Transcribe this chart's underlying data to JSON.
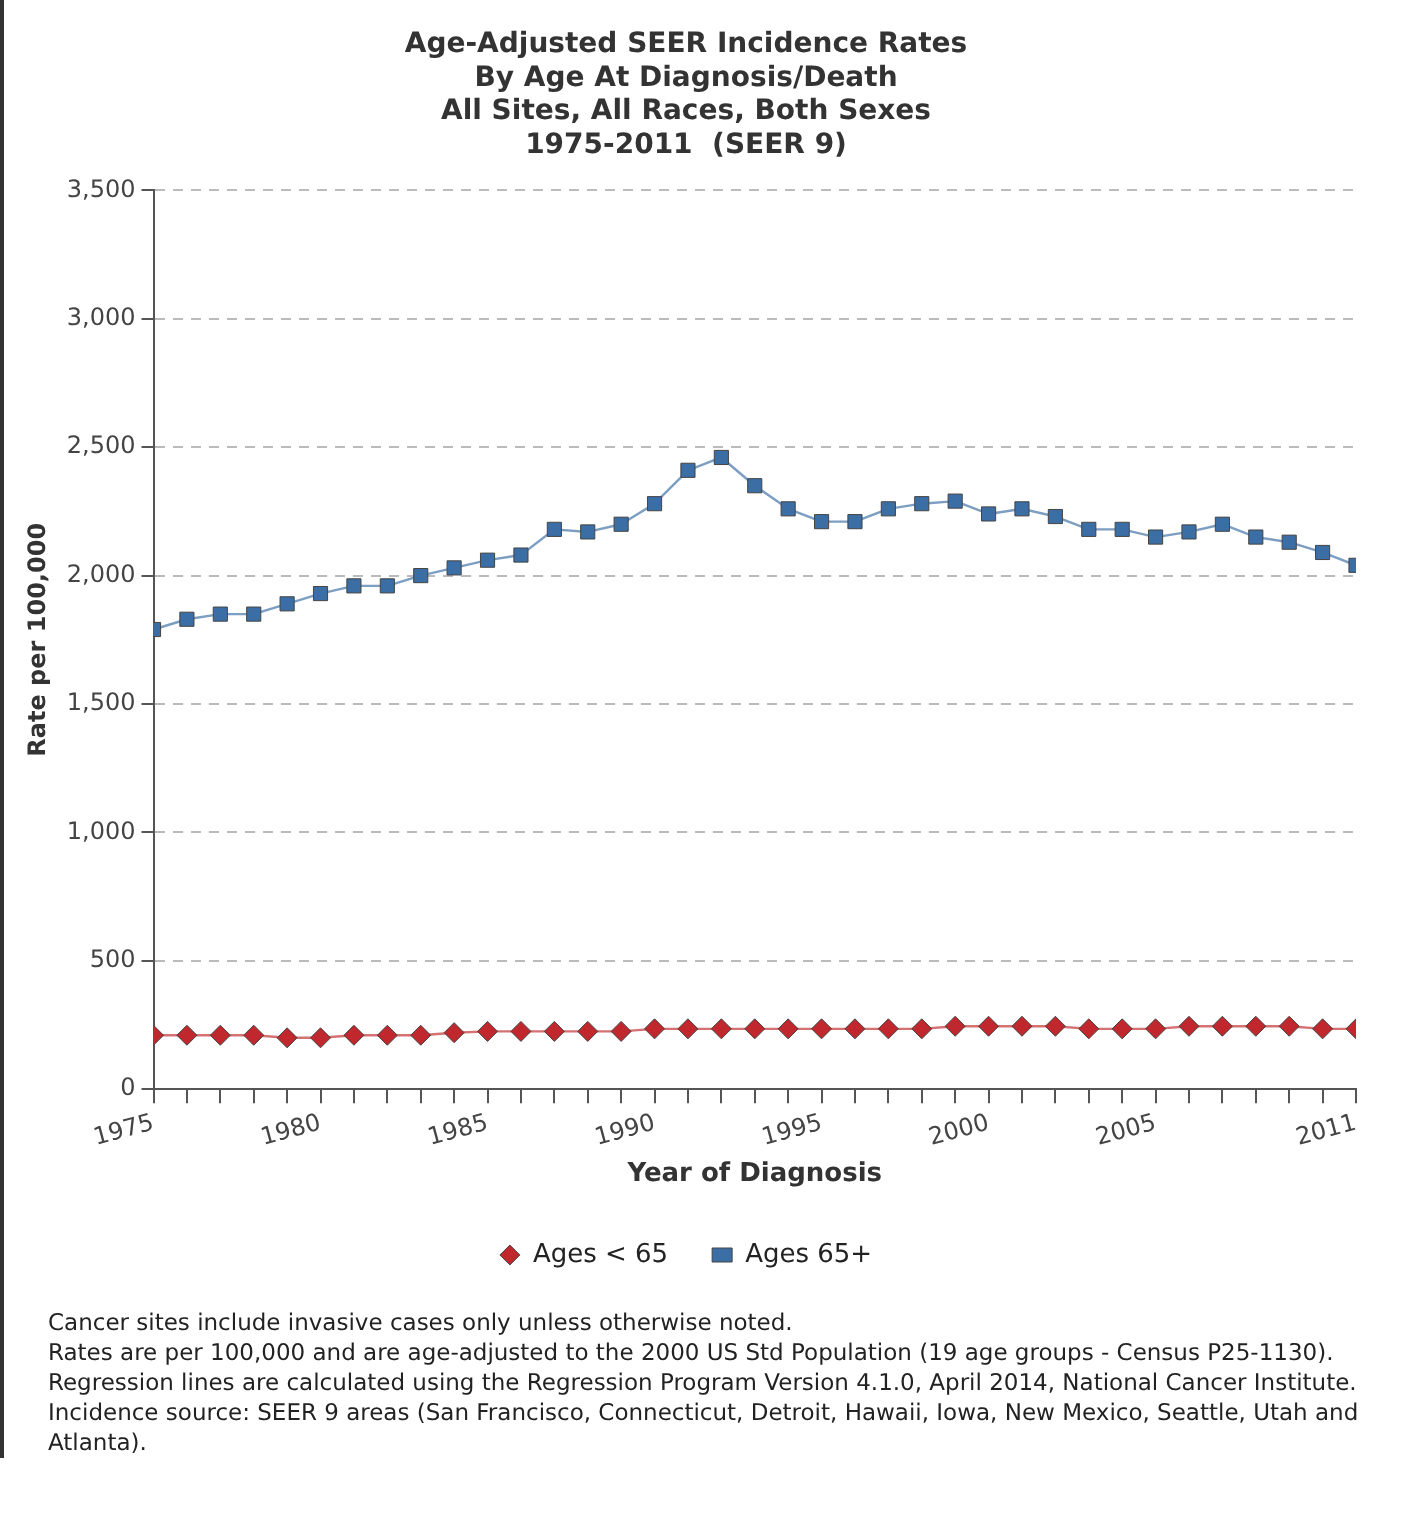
{
  "chart_data": {
    "type": "line",
    "title": "Age-Adjusted SEER Incidence Rates\nBy Age At Diagnosis/Death\nAll Sites, All Races, Both Sexes\n1975-2011  (SEER 9)",
    "xlabel": "Year of Diagnosis",
    "ylabel": "Rate per 100,000",
    "x": [
      1975,
      1976,
      1977,
      1978,
      1979,
      1980,
      1981,
      1982,
      1983,
      1984,
      1985,
      1986,
      1987,
      1988,
      1989,
      1990,
      1991,
      1992,
      1993,
      1994,
      1995,
      1996,
      1997,
      1998,
      1999,
      2000,
      2001,
      2002,
      2003,
      2004,
      2005,
      2006,
      2007,
      2008,
      2009,
      2010,
      2011
    ],
    "series": [
      {
        "name": "Ages < 65",
        "color": "#c0282d",
        "marker": "diamond",
        "values": [
          210,
          210,
          210,
          210,
          200,
          200,
          210,
          210,
          210,
          220,
          225,
          225,
          225,
          225,
          225,
          235,
          235,
          235,
          235,
          235,
          235,
          235,
          235,
          235,
          245,
          245,
          245,
          245,
          235,
          235,
          235,
          245,
          245,
          245,
          245,
          235,
          235
        ]
      },
      {
        "name": "Ages 65+",
        "color": "#3a6ea5",
        "marker": "square",
        "values": [
          1790,
          1830,
          1850,
          1850,
          1890,
          1930,
          1960,
          1960,
          2000,
          2030,
          2060,
          2080,
          2180,
          2170,
          2200,
          2280,
          2410,
          2460,
          2350,
          2260,
          2210,
          2210,
          2260,
          2280,
          2290,
          2240,
          2260,
          2230,
          2180,
          2180,
          2150,
          2170,
          2200,
          2150,
          2130,
          2090,
          2040
        ]
      }
    ],
    "xlim": [
      1975,
      2011
    ],
    "xticks": [
      1975,
      {
        "value": 1976,
        "label": null
      },
      {
        "value": 1977,
        "label": null
      },
      {
        "value": 1978,
        "label": null
      },
      {
        "value": 1979,
        "label": null
      },
      1980,
      {
        "value": 1981,
        "label": null
      },
      {
        "value": 1982,
        "label": null
      },
      {
        "value": 1983,
        "label": null
      },
      {
        "value": 1984,
        "label": null
      },
      1985,
      {
        "value": 1986,
        "label": null
      },
      {
        "value": 1987,
        "label": null
      },
      {
        "value": 1988,
        "label": null
      },
      {
        "value": 1989,
        "label": null
      },
      1990,
      {
        "value": 1991,
        "label": null
      },
      {
        "value": 1992,
        "label": null
      },
      {
        "value": 1993,
        "label": null
      },
      {
        "value": 1994,
        "label": null
      },
      1995,
      {
        "value": 1996,
        "label": null
      },
      {
        "value": 1997,
        "label": null
      },
      {
        "value": 1998,
        "label": null
      },
      {
        "value": 1999,
        "label": null
      },
      2000,
      {
        "value": 2001,
        "label": null
      },
      {
        "value": 2002,
        "label": null
      },
      {
        "value": 2003,
        "label": null
      },
      {
        "value": 2004,
        "label": null
      },
      2005,
      {
        "value": 2006,
        "label": null
      },
      {
        "value": 2007,
        "label": null
      },
      {
        "value": 2008,
        "label": null
      },
      {
        "value": 2009,
        "label": null
      },
      {
        "value": 2010,
        "label": null
      },
      2011
    ],
    "ylim": [
      0,
      3500
    ],
    "yticks": [
      {
        "value": 0,
        "label": "0"
      },
      {
        "value": 500,
        "label": "500"
      },
      {
        "value": 1000,
        "label": "1,000"
      },
      {
        "value": 1500,
        "label": "1,500"
      },
      {
        "value": 2000,
        "label": "2,000"
      },
      {
        "value": 2500,
        "label": "2,500"
      },
      {
        "value": 3000,
        "label": "3,000"
      },
      {
        "value": 3500,
        "label": "3,500"
      }
    ],
    "grid": "y",
    "line_style": "solid",
    "legend": "bottom",
    "annotations": [
      "Cancer sites include invasive cases only unless otherwise noted.",
      "Rates are per 100,000 and are age-adjusted to the 2000 US Std Population (19 age groups - Census P25-1130). Regression lines are calculated using the Regression Program Version 4.1.0, April 2014, National Cancer Institute.",
      "Incidence source: SEER 9 areas (San Francisco, Connecticut, Detroit, Hawaii, Iowa, New Mexico, Seattle, Utah and Atlanta)."
    ]
  }
}
